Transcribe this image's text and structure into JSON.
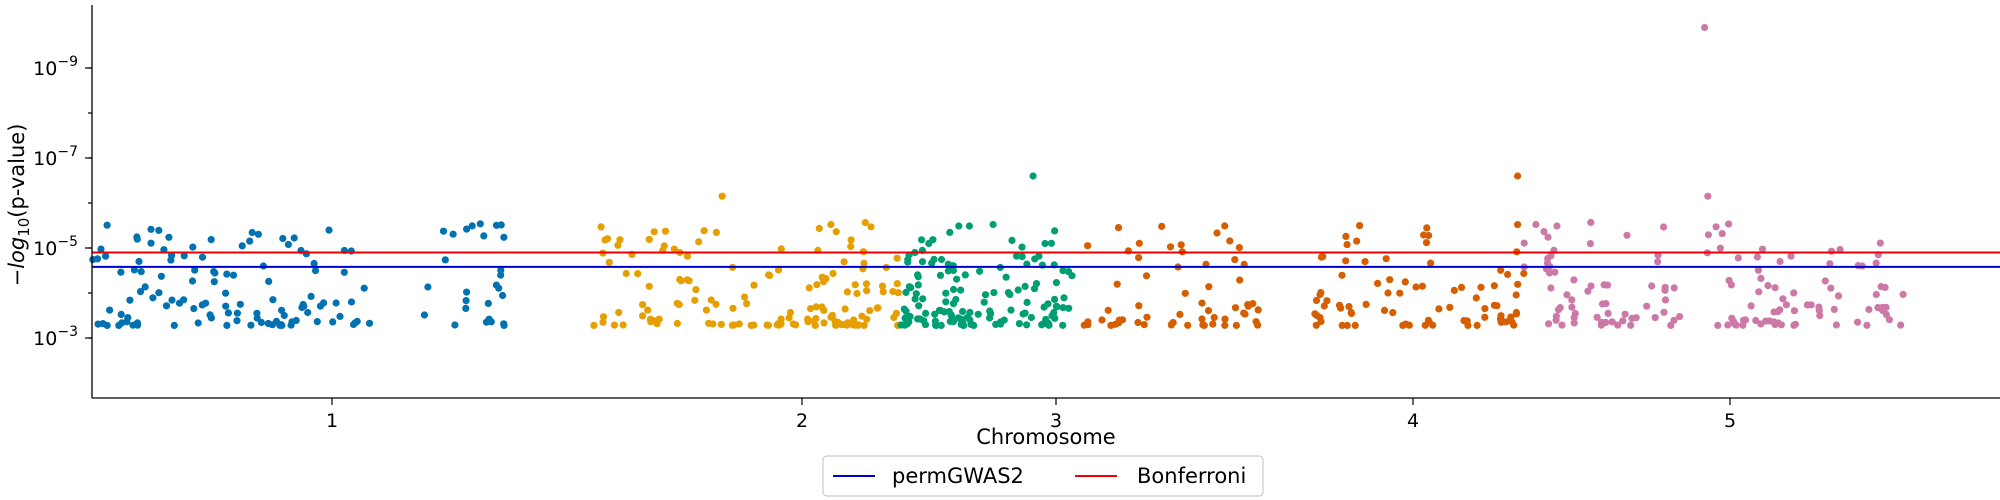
{
  "chart_data": {
    "type": "scatter",
    "title": "",
    "xlabel": "Chromosome",
    "ylabel_prefix": "−log",
    "ylabel_sub": "10",
    "ylabel_suffix": "(p-value)",
    "xlim": [
      0.3,
      6.0
    ],
    "ylim_log": [
      -2.6,
      -9.7
    ],
    "y_scale": "log (inverted: 10^-3 at bottom, 10^-9 at top)",
    "x_ticks": [
      {
        "value": 1,
        "label": "1"
      },
      {
        "value": 2,
        "label": "2"
      },
      {
        "value": 3,
        "label": "3"
      },
      {
        "value": 4,
        "label": "4"
      },
      {
        "value": 5,
        "label": "5"
      }
    ],
    "y_ticks": [
      {
        "exp": -3,
        "base": "10",
        "sup": "−3"
      },
      {
        "exp": -5,
        "base": "10",
        "sup": "−5"
      },
      {
        "exp": -7,
        "base": "10",
        "sup": "−7"
      },
      {
        "exp": -9,
        "base": "10",
        "sup": "−9"
      }
    ],
    "chromosome_colors": [
      "#0072b2",
      "#e69f00",
      "#009e73",
      "#d55e00",
      "#cc79a7"
    ],
    "chromosome_ranges": [
      [
        0.3,
        1.4
      ],
      [
        1.4,
        2.38
      ],
      [
        2.38,
        3.05
      ],
      [
        3.05,
        4.35
      ],
      [
        4.35,
        5.65
      ]
    ],
    "gaps": [
      [
        1.08,
        1.18
      ],
      [
        1.37,
        1.45
      ],
      [
        1.45,
        1.55
      ],
      [
        2.0,
        2.02
      ],
      [
        3.6,
        3.72
      ],
      [
        4.86,
        4.92
      ]
    ],
    "significant_points": [
      {
        "chromosome": 1,
        "x": 0.53,
        "log10p": -4.73
      },
      {
        "chromosome": 1,
        "x": 0.8,
        "log10p": -4.6
      },
      {
        "chromosome": 2,
        "x": 1.59,
        "log10p": -4.68
      },
      {
        "chromosome": 2,
        "x": 1.83,
        "log10p": -6.15
      },
      {
        "chromosome": 3,
        "x": 2.91,
        "log10p": -6.6
      },
      {
        "chromosome": 4,
        "x": 4.33,
        "log10p": -6.6
      },
      {
        "chromosome": 4,
        "x": 4.33,
        "log10p": -5.52
      },
      {
        "chromosome": 5,
        "x": 4.93,
        "log10p": -6.15
      },
      {
        "chromosome": 5,
        "x": 4.92,
        "log10p": -9.9
      },
      {
        "chromosome": 5,
        "x": 5.49,
        "log10p": -4.6
      }
    ],
    "thresholds": [
      {
        "name": "permGWAS2",
        "log10p": -4.58,
        "color": "#0000cc"
      },
      {
        "name": "Bonferroni",
        "log10p": -4.9,
        "color": "#ee0000"
      }
    ],
    "legend_placement": "bottom-center",
    "n_points_per_chromosome": 140,
    "random_seed": 1234
  }
}
